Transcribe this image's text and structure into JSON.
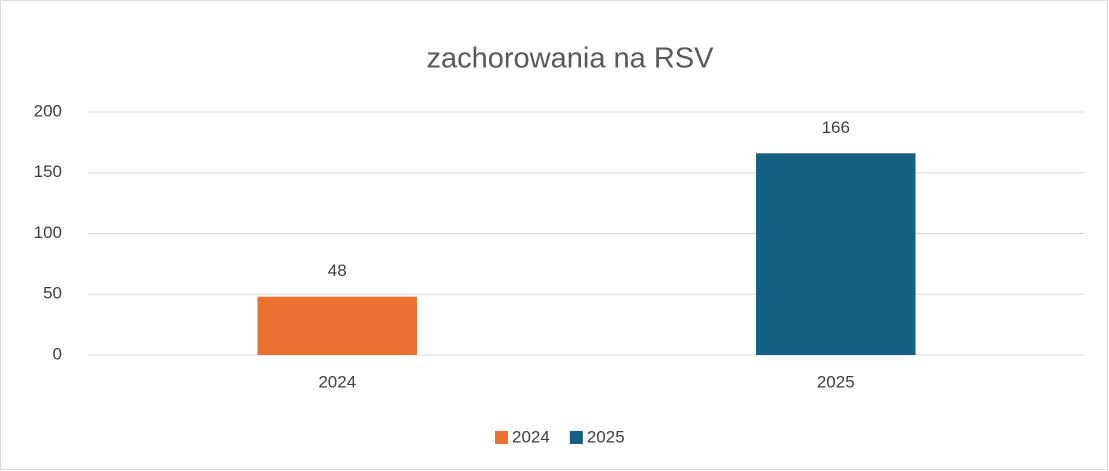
{
  "chart_data": {
    "type": "bar",
    "title": "zachorowania na RSV",
    "categories": [
      "2024",
      "2025"
    ],
    "values": [
      48,
      166
    ],
    "colors": [
      "#e97132",
      "#156082"
    ],
    "ylim": [
      0,
      200
    ],
    "yticks": [
      0,
      50,
      100,
      150,
      200
    ],
    "grid": true,
    "legend": "bottom",
    "data_labels": true
  }
}
